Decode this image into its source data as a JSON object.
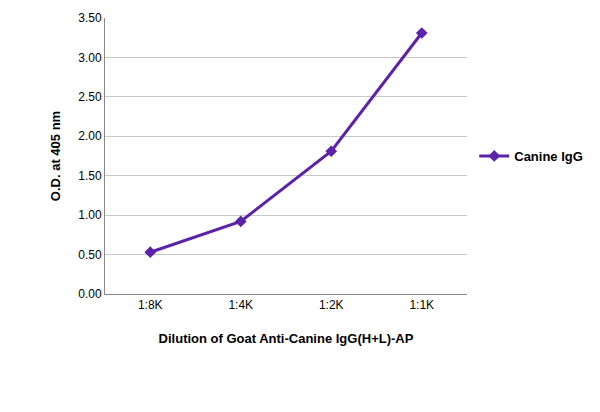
{
  "chart_data": {
    "type": "line",
    "x_label": "Dilution of Goat Anti-Canine IgG(H+L)-AP",
    "y_label": "O.D. at 405 nm",
    "categories": [
      "1:8K",
      "1:4K",
      "1:2K",
      "1:1K"
    ],
    "series": [
      {
        "name": "Canine IgG",
        "color": "#5c22a8",
        "marker": "diamond",
        "values": [
          0.53,
          0.92,
          1.81,
          3.31
        ]
      }
    ],
    "ylim": [
      0,
      3.5
    ],
    "yticks": [
      {
        "value": 0,
        "label": "0.00"
      },
      {
        "value": 0.5,
        "label": "0.50"
      },
      {
        "value": 1,
        "label": "1.00"
      },
      {
        "value": 1.5,
        "label": "1.50"
      },
      {
        "value": 2,
        "label": "2.00"
      },
      {
        "value": 2.5,
        "label": "2.50"
      },
      {
        "value": 3,
        "label": "3.00"
      },
      {
        "value": 3.5,
        "label": "3.50"
      }
    ],
    "grid": true,
    "legend": "right"
  }
}
